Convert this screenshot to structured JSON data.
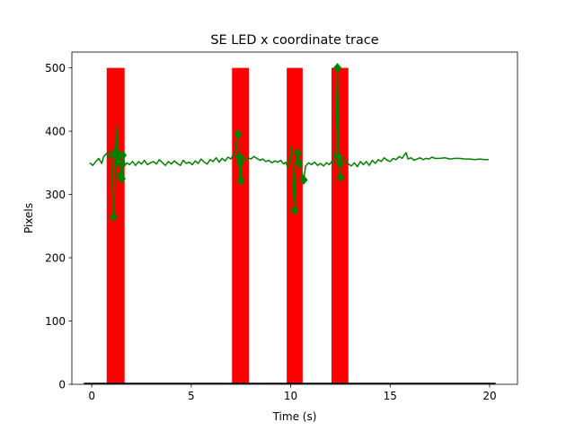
{
  "chart_data": {
    "type": "line",
    "title": "SE LED x coordinate trace",
    "xlabel": "Time (s)",
    "ylabel": "Pixels",
    "xlim": [
      -1,
      21.4
    ],
    "ylim": [
      0,
      525
    ],
    "xticks": [
      0,
      5,
      10,
      15,
      20
    ],
    "yticks": [
      0,
      100,
      200,
      300,
      400,
      500
    ],
    "grid": false,
    "legend": "none",
    "colors": {
      "bars": "#ff0000",
      "trace": "#008000",
      "baseline": "#000000"
    },
    "event_bars": [
      {
        "x_start": 0.75,
        "x_end": 1.65,
        "height": 500
      },
      {
        "x_start": 7.05,
        "x_end": 7.9,
        "height": 500
      },
      {
        "x_start": 9.8,
        "x_end": 10.6,
        "height": 500
      },
      {
        "x_start": 12.05,
        "x_end": 12.9,
        "height": 500
      }
    ],
    "baseline": {
      "x_start": -0.4,
      "x_end": 20.3,
      "y": 0
    },
    "series": [
      {
        "values": [
          [
            -0.1,
            350
          ],
          [
            0.05,
            346
          ],
          [
            0.2,
            352
          ],
          [
            0.35,
            357
          ],
          [
            0.5,
            349
          ],
          [
            0.6,
            360
          ],
          [
            0.75,
            365
          ],
          [
            0.85,
            358
          ],
          [
            0.95,
            368
          ],
          [
            1.0,
            340
          ],
          [
            1.05,
            300
          ],
          [
            1.1,
            265
          ],
          [
            1.15,
            310
          ],
          [
            1.2,
            370
          ],
          [
            1.25,
            410
          ],
          [
            1.3,
            372
          ],
          [
            1.35,
            355
          ],
          [
            1.4,
            365
          ],
          [
            1.45,
            330
          ],
          [
            1.5,
            325
          ],
          [
            1.55,
            340
          ],
          [
            1.6,
            362
          ],
          [
            1.65,
            345
          ],
          [
            1.75,
            350
          ],
          [
            1.9,
            347
          ],
          [
            2.05,
            352
          ],
          [
            2.2,
            346
          ],
          [
            2.35,
            352
          ],
          [
            2.5,
            348
          ],
          [
            2.65,
            354
          ],
          [
            2.8,
            347
          ],
          [
            2.95,
            350
          ],
          [
            3.1,
            352
          ],
          [
            3.25,
            348
          ],
          [
            3.4,
            355
          ],
          [
            3.55,
            350
          ],
          [
            3.7,
            346
          ],
          [
            3.85,
            352
          ],
          [
            4.0,
            348
          ],
          [
            4.15,
            353
          ],
          [
            4.3,
            349
          ],
          [
            4.45,
            346
          ],
          [
            4.6,
            354
          ],
          [
            4.75,
            349
          ],
          [
            4.9,
            351
          ],
          [
            5.05,
            347
          ],
          [
            5.2,
            353
          ],
          [
            5.35,
            349
          ],
          [
            5.5,
            356
          ],
          [
            5.65,
            351
          ],
          [
            5.8,
            348
          ],
          [
            5.95,
            355
          ],
          [
            6.1,
            352
          ],
          [
            6.25,
            358
          ],
          [
            6.4,
            351
          ],
          [
            6.55,
            357
          ],
          [
            6.7,
            353
          ],
          [
            6.85,
            359
          ],
          [
            7.0,
            356
          ],
          [
            7.1,
            362
          ],
          [
            7.2,
            368
          ],
          [
            7.3,
            385
          ],
          [
            7.35,
            395
          ],
          [
            7.4,
            360
          ],
          [
            7.45,
            330
          ],
          [
            7.5,
            322
          ],
          [
            7.55,
            350
          ],
          [
            7.6,
            360
          ],
          [
            7.7,
            355
          ],
          [
            7.85,
            358
          ],
          [
            8.0,
            356
          ],
          [
            8.15,
            360
          ],
          [
            8.3,
            357
          ],
          [
            8.45,
            354
          ],
          [
            8.6,
            356
          ],
          [
            8.75,
            352
          ],
          [
            8.9,
            354
          ],
          [
            9.05,
            350
          ],
          [
            9.2,
            353
          ],
          [
            9.35,
            351
          ],
          [
            9.5,
            354
          ],
          [
            9.65,
            348
          ],
          [
            9.75,
            351
          ],
          [
            9.85,
            343
          ],
          [
            9.95,
            352
          ],
          [
            10.05,
            375
          ],
          [
            10.1,
            345
          ],
          [
            10.15,
            300
          ],
          [
            10.2,
            275
          ],
          [
            10.25,
            330
          ],
          [
            10.3,
            355
          ],
          [
            10.35,
            365
          ],
          [
            10.4,
            350
          ],
          [
            10.5,
            346
          ],
          [
            10.6,
            330
          ],
          [
            10.65,
            323
          ],
          [
            10.75,
            345
          ],
          [
            10.9,
            350
          ],
          [
            11.05,
            347
          ],
          [
            11.2,
            351
          ],
          [
            11.35,
            346
          ],
          [
            11.5,
            349
          ],
          [
            11.65,
            345
          ],
          [
            11.8,
            350
          ],
          [
            11.95,
            347
          ],
          [
            12.05,
            352
          ],
          [
            12.15,
            350
          ],
          [
            12.25,
            370
          ],
          [
            12.35,
            500
          ],
          [
            12.4,
            360
          ],
          [
            12.45,
            330
          ],
          [
            12.5,
            327
          ],
          [
            12.55,
            345
          ],
          [
            12.65,
            358
          ],
          [
            12.75,
            353
          ],
          [
            12.9,
            348
          ],
          [
            13.05,
            345
          ],
          [
            13.2,
            350
          ],
          [
            13.35,
            344
          ],
          [
            13.5,
            352
          ],
          [
            13.65,
            347
          ],
          [
            13.8,
            352
          ],
          [
            13.95,
            346
          ],
          [
            14.1,
            354
          ],
          [
            14.25,
            349
          ],
          [
            14.4,
            355
          ],
          [
            14.55,
            352
          ],
          [
            14.7,
            358
          ],
          [
            14.85,
            354
          ],
          [
            15.0,
            352
          ],
          [
            15.15,
            357
          ],
          [
            15.3,
            355
          ],
          [
            15.45,
            360
          ],
          [
            15.6,
            357
          ],
          [
            15.7,
            362
          ],
          [
            15.8,
            366
          ],
          [
            15.9,
            356
          ],
          [
            16.05,
            358
          ],
          [
            16.2,
            354
          ],
          [
            16.35,
            356
          ],
          [
            16.5,
            358
          ],
          [
            16.65,
            355
          ],
          [
            16.8,
            357
          ],
          [
            16.95,
            356
          ],
          [
            17.1,
            359
          ],
          [
            17.25,
            357
          ],
          [
            17.5,
            357
          ],
          [
            17.75,
            358
          ],
          [
            18.0,
            356
          ],
          [
            18.25,
            357
          ],
          [
            18.5,
            357
          ],
          [
            18.75,
            356
          ],
          [
            19.0,
            356
          ],
          [
            19.25,
            355
          ],
          [
            19.5,
            356
          ],
          [
            19.75,
            355
          ],
          [
            19.95,
            355
          ]
        ],
        "markers": [
          [
            1.1,
            265
          ],
          [
            1.15,
            362
          ],
          [
            1.2,
            368
          ],
          [
            1.3,
            360
          ],
          [
            1.35,
            350
          ],
          [
            1.45,
            330
          ],
          [
            1.5,
            325
          ],
          [
            1.55,
            362
          ],
          [
            7.35,
            395
          ],
          [
            7.4,
            360
          ],
          [
            7.45,
            350
          ],
          [
            7.5,
            322
          ],
          [
            10.2,
            275
          ],
          [
            10.35,
            365
          ],
          [
            10.4,
            350
          ],
          [
            10.65,
            323
          ],
          [
            12.35,
            500
          ],
          [
            12.4,
            360
          ],
          [
            12.45,
            350
          ],
          [
            12.5,
            327
          ]
        ]
      }
    ]
  }
}
